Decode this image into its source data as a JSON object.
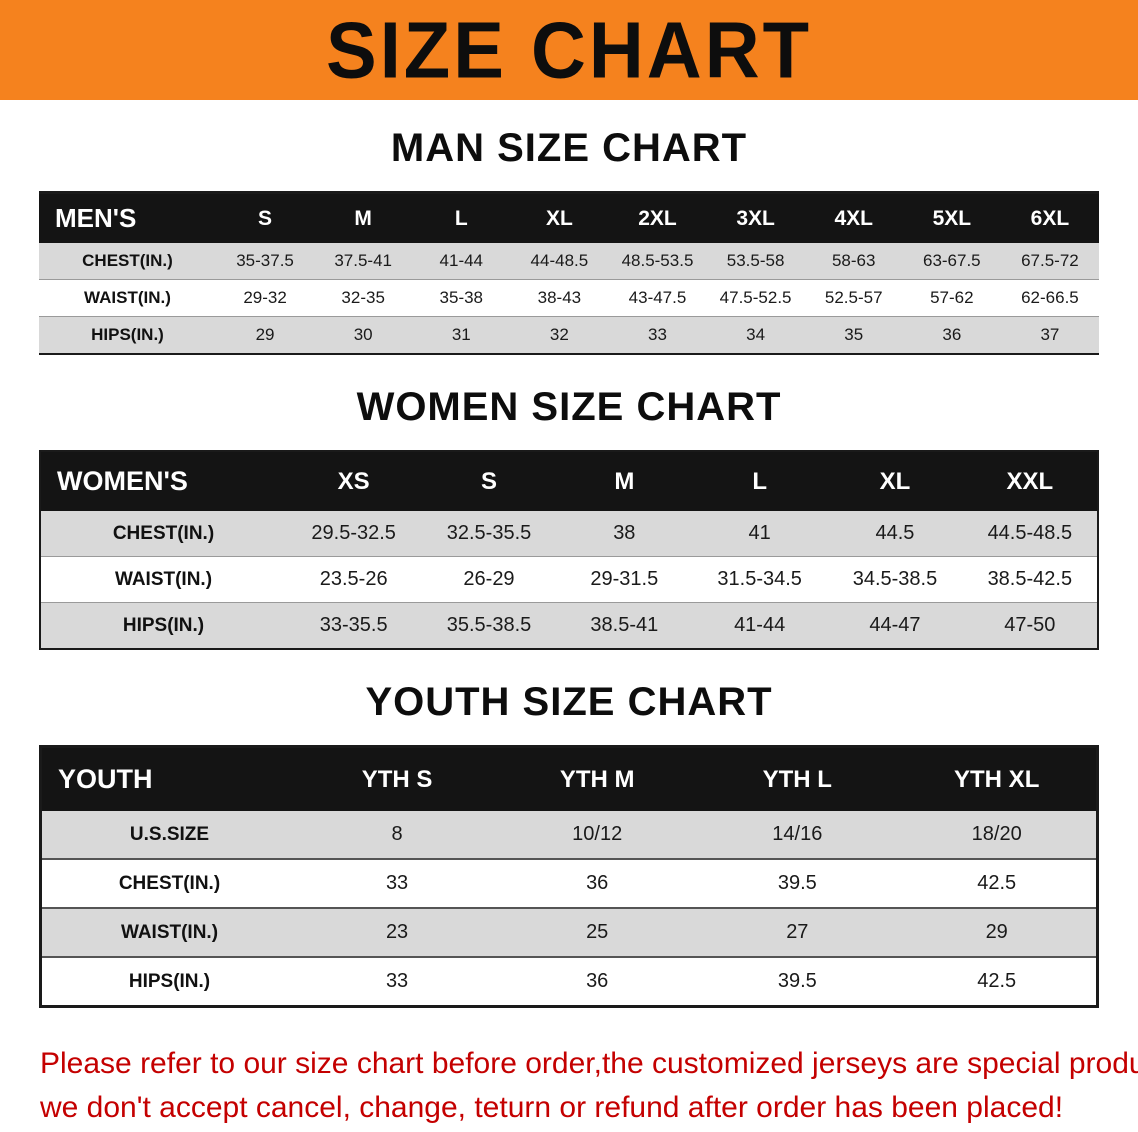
{
  "page": {
    "banner_title": "SIZE CHART",
    "accent_orange": "#f5821e",
    "note_color": "#c40000",
    "note_lines": [
      "Please refer to our size chart before order,the customized jerseys are special products,",
      "we don't accept cancel, change, teturn or refund after order has been placed!"
    ]
  },
  "sections": [
    {
      "title": "MAN SIZE CHART",
      "table": {
        "corner": "MEN'S",
        "columns": [
          "S",
          "M",
          "L",
          "XL",
          "2XL",
          "3XL",
          "4XL",
          "5XL",
          "6XL"
        ],
        "rows": [
          {
            "label": "CHEST(IN.)",
            "values": [
              "35-37.5",
              "37.5-41",
              "41-44",
              "44-48.5",
              "48.5-53.5",
              "53.5-58",
              "58-63",
              "63-67.5",
              "67.5-72"
            ]
          },
          {
            "label": "WAIST(IN.)",
            "values": [
              "29-32",
              "32-35",
              "35-38",
              "38-43",
              "43-47.5",
              "47.5-52.5",
              "52.5-57",
              "57-62",
              "62-66.5"
            ]
          },
          {
            "label": "HIPS(IN.)",
            "values": [
              "29",
              "30",
              "31",
              "32",
              "33",
              "34",
              "35",
              "36",
              "37"
            ]
          }
        ]
      }
    },
    {
      "title": "WOMEN SIZE CHART",
      "table": {
        "corner": "WOMEN'S",
        "columns": [
          "XS",
          "S",
          "M",
          "L",
          "XL",
          "XXL"
        ],
        "rows": [
          {
            "label": "CHEST(IN.)",
            "values": [
              "29.5-32.5",
              "32.5-35.5",
              "38",
              "41",
              "44.5",
              "44.5-48.5"
            ]
          },
          {
            "label": "WAIST(IN.)",
            "values": [
              "23.5-26",
              "26-29",
              "29-31.5",
              "31.5-34.5",
              "34.5-38.5",
              "38.5-42.5"
            ]
          },
          {
            "label": "HIPS(IN.)",
            "values": [
              "33-35.5",
              "35.5-38.5",
              "38.5-41",
              "41-44",
              "44-47",
              "47-50"
            ]
          }
        ]
      }
    },
    {
      "title": "YOUTH SIZE CHART",
      "table": {
        "corner": "YOUTH",
        "columns": [
          "YTH S",
          "YTH M",
          "YTH L",
          "YTH XL"
        ],
        "rows": [
          {
            "label": "U.S.SIZE",
            "values": [
              "8",
              "10/12",
              "14/16",
              "18/20"
            ]
          },
          {
            "label": "CHEST(IN.)",
            "values": [
              "33",
              "36",
              "39.5",
              "42.5"
            ]
          },
          {
            "label": "WAIST(IN.)",
            "values": [
              "23",
              "25",
              "27",
              "29"
            ]
          },
          {
            "label": "HIPS(IN.)",
            "values": [
              "33",
              "36",
              "39.5",
              "42.5"
            ]
          }
        ]
      }
    }
  ]
}
